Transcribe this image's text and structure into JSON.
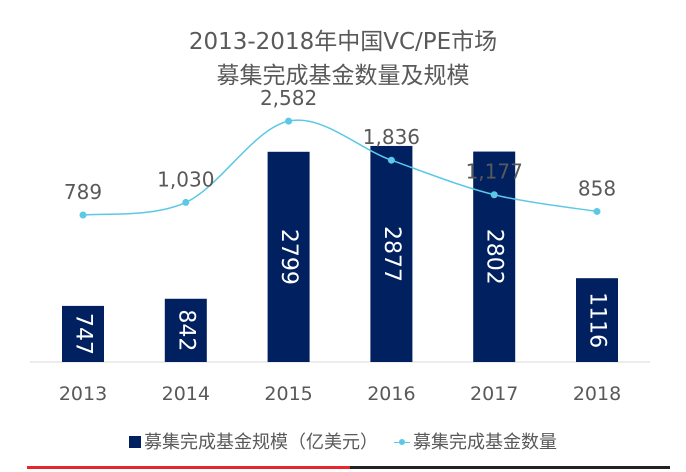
{
  "chart_data": {
    "type": "bar+line",
    "title": [
      "2013-2018年中国VC/PE市场",
      "募集完成基金数量及规模"
    ],
    "categories": [
      "2013",
      "2014",
      "2015",
      "2016",
      "2017",
      "2018"
    ],
    "series": [
      {
        "name": "募集完成基金规模（亿美元）",
        "type": "bar",
        "values": [
          747,
          842,
          2799,
          2877,
          2802,
          1116
        ],
        "color": "#002060"
      },
      {
        "name": "募集完成基金数量",
        "type": "line",
        "values": [
          789,
          1030,
          2582,
          1836,
          1177,
          858
        ],
        "labels": [
          "789",
          "1,030",
          "2,582",
          "1,836",
          "1,177",
          "858"
        ],
        "color": "#5BC8E6"
      }
    ],
    "grid": false,
    "legend": "bottom"
  }
}
